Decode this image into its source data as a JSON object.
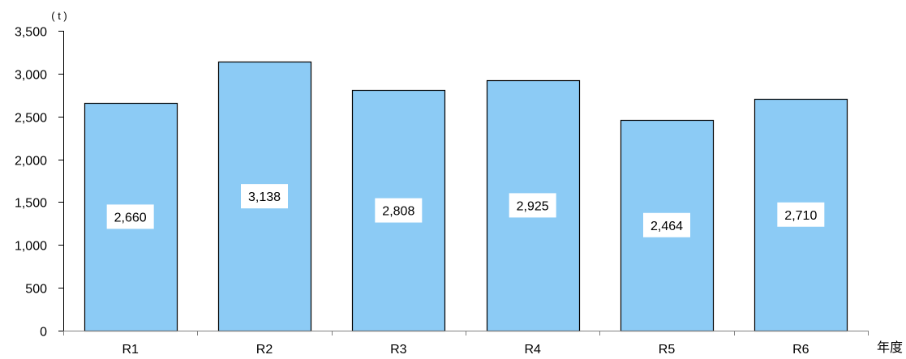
{
  "chart_data": {
    "type": "bar",
    "categories": [
      "R1",
      "R2",
      "R3",
      "R4",
      "R5",
      "R6"
    ],
    "values": [
      2660,
      3138,
      2808,
      2925,
      2464,
      2710
    ],
    "data_labels": [
      "2,660",
      "3,138",
      "2,808",
      "2,925",
      "2,464",
      "2,710"
    ],
    "ylim": [
      0,
      3500
    ],
    "yticks": [
      0,
      500,
      1000,
      1500,
      2000,
      2500,
      3000,
      3500
    ],
    "ytick_labels": [
      "0",
      "500",
      "1,000",
      "1,500",
      "2,000",
      "2,500",
      "3,000",
      "3,500"
    ],
    "y_unit": "( t )",
    "xlabel": "年度",
    "grid": false,
    "legend": "none",
    "bar_color": "#8ccbf5",
    "bar_edge_color": "#000000"
  }
}
